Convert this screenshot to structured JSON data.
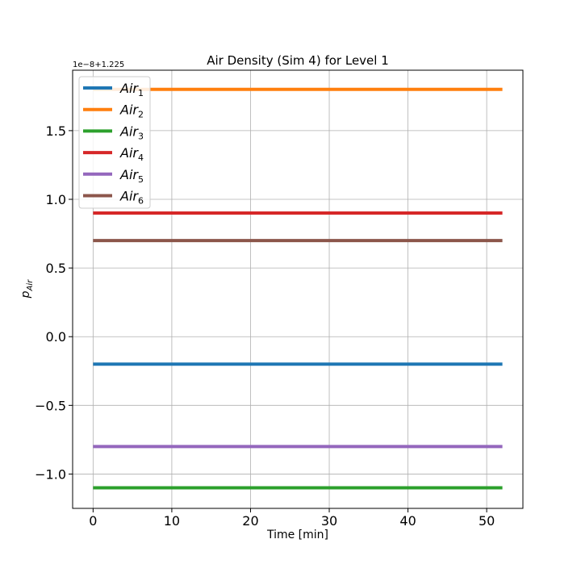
{
  "chart_data": {
    "type": "line",
    "title": "Air Density (Sim 4) for Level 1",
    "xlabel": "Time [min]",
    "ylabel_main": "p",
    "ylabel_sub": "Air",
    "offset_text": "1e−8+1.225",
    "xlim": [
      -2.6,
      54.6
    ],
    "ylim": [
      -1.25,
      1.94
    ],
    "x_ticks": [
      0,
      10,
      20,
      30,
      40,
      50
    ],
    "x_tick_labels": [
      "0",
      "10",
      "20",
      "30",
      "40",
      "50"
    ],
    "y_ticks": [
      -1.0,
      -0.5,
      0.0,
      0.5,
      1.0,
      1.5
    ],
    "y_tick_labels": [
      "−1.0",
      "−0.5",
      "0.0",
      "0.5",
      "1.0",
      "1.5"
    ],
    "grid": true,
    "legend_position": "top-left",
    "x": [
      0,
      52
    ],
    "series": [
      {
        "name_base": "Air",
        "name_sub": "1",
        "color": "#1f77b4",
        "values": [
          -0.2,
          -0.2
        ]
      },
      {
        "name_base": "Air",
        "name_sub": "2",
        "color": "#ff7f0e",
        "values": [
          1.8,
          1.8
        ]
      },
      {
        "name_base": "Air",
        "name_sub": "3",
        "color": "#2ca02c",
        "values": [
          -1.1,
          -1.1
        ]
      },
      {
        "name_base": "Air",
        "name_sub": "4",
        "color": "#d62728",
        "values": [
          0.9,
          0.9
        ]
      },
      {
        "name_base": "Air",
        "name_sub": "5",
        "color": "#9467bd",
        "values": [
          -0.8,
          -0.8
        ]
      },
      {
        "name_base": "Air",
        "name_sub": "6",
        "color": "#8c564b",
        "values": [
          0.7,
          0.7
        ]
      }
    ]
  }
}
